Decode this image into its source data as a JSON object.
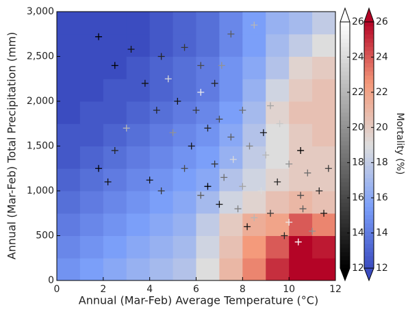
{
  "chart_data": {
    "type": "heatmap-scatter",
    "xlabel": "Annual (Mar-Feb) Average Temperature (°C)",
    "ylabel": "Annual (Mar-Feb) Total Precipitation (mm)",
    "colorbar_label": "Mortality (%)",
    "xlim": [
      0,
      12
    ],
    "xticks": [
      0,
      2,
      4,
      6,
      8,
      10,
      12
    ],
    "ylim": [
      0,
      3000
    ],
    "yticks": [
      0,
      500,
      {
        "value": 1000,
        "label": "1,000"
      },
      {
        "value": 1500,
        "label": "1,500"
      },
      {
        "value": 2000,
        "label": "2,000"
      },
      {
        "value": 2500,
        "label": "2,500"
      },
      {
        "value": 3000,
        "label": "3,000"
      }
    ],
    "clim": [
      12,
      26
    ],
    "cticks": [
      12,
      14,
      16,
      18,
      20,
      22,
      24,
      26
    ],
    "heatmap": {
      "colormap": [
        "#3b4cc0",
        "#7b9ff9",
        "#dddddd",
        "#f49a7b",
        "#b40426"
      ],
      "xbins": [
        0,
        1,
        2,
        3,
        4,
        5,
        6,
        7,
        8,
        9,
        10,
        11,
        12
      ],
      "ybins": [
        0,
        250,
        500,
        750,
        1000,
        1250,
        1500,
        1750,
        2000,
        2250,
        2500,
        2750,
        3000
      ],
      "z": [
        [
          15,
          15.5,
          16,
          16.5,
          17,
          17.5,
          19,
          21,
          23,
          25,
          26,
          26
        ],
        [
          14.5,
          15,
          15.5,
          16,
          16.5,
          17,
          18.5,
          20.5,
          22.5,
          24,
          26,
          25.5
        ],
        [
          14,
          14.5,
          15,
          15.5,
          16,
          16.5,
          18,
          20,
          21.5,
          22,
          24,
          23
        ],
        [
          13.5,
          14,
          14.5,
          15,
          15.5,
          16,
          17,
          18.5,
          19.5,
          20.5,
          21,
          20.5
        ],
        [
          13,
          13.5,
          14,
          14.5,
          15,
          15.5,
          16,
          17.5,
          18.5,
          19.5,
          20,
          20
        ],
        [
          12.5,
          13,
          13.5,
          14,
          14.5,
          15,
          15.5,
          16.5,
          18,
          19,
          20,
          20
        ],
        [
          12.5,
          12.5,
          13,
          13.5,
          14,
          14.5,
          15,
          16,
          17.5,
          19,
          20,
          20.5
        ],
        [
          12,
          12.5,
          12.5,
          13,
          13.5,
          14,
          14.5,
          15.5,
          17,
          19.5,
          20.5,
          20.5
        ],
        [
          12,
          12,
          12.5,
          12.5,
          13,
          13.5,
          14,
          15,
          16.5,
          18.5,
          20,
          20.5
        ],
        [
          12,
          12,
          12,
          12.5,
          13,
          13.5,
          14,
          15,
          16,
          17.5,
          19.5,
          20
        ],
        [
          12,
          12,
          12,
          12,
          12.5,
          13,
          13.5,
          14.5,
          15.5,
          17,
          18,
          19
        ],
        [
          12,
          12,
          12,
          12,
          12.5,
          13,
          13.5,
          14.5,
          15.5,
          16.5,
          17,
          18
        ]
      ]
    },
    "scatter": {
      "colormap": [
        "#000000",
        "#ffffff"
      ],
      "x": [
        1.8,
        3.2,
        2.5,
        4.5,
        3.8,
        5.5,
        6.2,
        7.5,
        8.5,
        6.8,
        5.2,
        6,
        7,
        8,
        9.2,
        6.5,
        7.5,
        8.3,
        9,
        10,
        10.8,
        5.8,
        2.5,
        1.8,
        2.2,
        4,
        4.5,
        5.5,
        6.8,
        7.2,
        8,
        8.8,
        9.5,
        10.5,
        11.3,
        6.2,
        7,
        7.8,
        8.5,
        9.2,
        10,
        10.6,
        11.5,
        9.8,
        10.4,
        11,
        8.2,
        6.5,
        7.6,
        5,
        6.2,
        4.3,
        8.9,
        9.6,
        10.5,
        3,
        11.7,
        7.1,
        4.8
      ],
      "y": [
        2720,
        2580,
        2400,
        2500,
        2200,
        2600,
        2400,
        2750,
        2850,
        2200,
        2000,
        1900,
        1800,
        1900,
        1950,
        1700,
        1600,
        1500,
        1400,
        1300,
        1200,
        1500,
        1450,
        1250,
        1100,
        1120,
        1000,
        1250,
        1300,
        1150,
        1050,
        1000,
        1100,
        950,
        1000,
        950,
        850,
        800,
        700,
        750,
        650,
        800,
        750,
        500,
        430,
        550,
        600,
        1050,
        1350,
        1650,
        2100,
        1900,
        1650,
        1750,
        1450,
        1700,
        1250,
        2400,
        2250
      ],
      "values": [
        12,
        13,
        12,
        14,
        13,
        15,
        16,
        17,
        22,
        14,
        13,
        15,
        16,
        18,
        21,
        14,
        17,
        19,
        22,
        20,
        18,
        13,
        14,
        12,
        13,
        13,
        15,
        16,
        15,
        18,
        21,
        24,
        14,
        16,
        14,
        17,
        13,
        19,
        22,
        15,
        25,
        17,
        13,
        14,
        26,
        20,
        13,
        12,
        24,
        20,
        25,
        14,
        13,
        23,
        12,
        22,
        15,
        20,
        24
      ]
    }
  }
}
